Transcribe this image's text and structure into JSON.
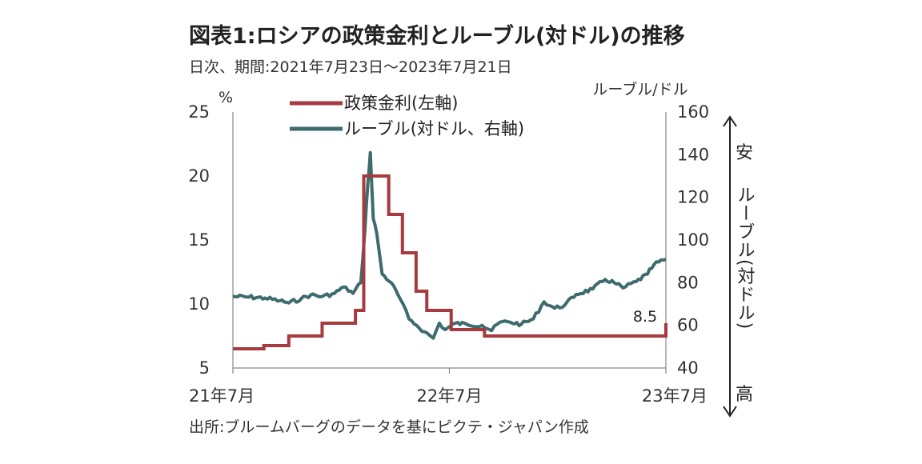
{
  "chart_data": {
    "type": "line",
    "title": "図表1:ロシアの政策金利とルーブル(対ドル)の推移",
    "subtitle": "日次、期間:2021年7月23日〜2023年7月21日",
    "source": "出所:ブルームバーグのデータを基にピクテ・ジャパン作成",
    "x_ticks": [
      "21年7月",
      "22年7月",
      "23年7月"
    ],
    "y_left": {
      "unit": "%",
      "min": 5,
      "max": 25,
      "ticks": [
        "5",
        "10",
        "15",
        "20",
        "25"
      ]
    },
    "y_right": {
      "unit": "ルーブル/ドル",
      "min": 40,
      "max": 160,
      "ticks": [
        "40",
        "60",
        "80",
        "100",
        "120",
        "140",
        "160"
      ]
    },
    "right_side_annotation": {
      "top": "安",
      "middle": "ルーブル(対ドル)",
      "bottom": "高"
    },
    "annotation": "8.5",
    "legend": {
      "position": "top-center"
    },
    "series": [
      {
        "name": "政策金利(左軸)",
        "axis": "left",
        "color": "#a63a3e",
        "step": true,
        "points": [
          [
            "2021-07-23",
            6.5
          ],
          [
            "2021-09-13",
            6.75
          ],
          [
            "2021-10-25",
            7.5
          ],
          [
            "2021-12-20",
            8.5
          ],
          [
            "2022-02-14",
            9.5
          ],
          [
            "2022-02-28",
            20.0
          ],
          [
            "2022-04-11",
            17.0
          ],
          [
            "2022-05-04",
            14.0
          ],
          [
            "2022-05-27",
            11.0
          ],
          [
            "2022-06-14",
            9.5
          ],
          [
            "2022-07-25",
            8.0
          ],
          [
            "2022-09-19",
            7.5
          ],
          [
            "2023-07-21",
            8.5
          ]
        ]
      },
      {
        "name": "ルーブル(対ドル、右軸)",
        "axis": "right",
        "color": "#3d6b6e",
        "step": false,
        "points": [
          [
            "2021-07-23",
            73.5
          ],
          [
            "2021-08-15",
            73.3
          ],
          [
            "2021-09-15",
            72.8
          ],
          [
            "2021-10-10",
            71.5
          ],
          [
            "2021-10-25",
            70.5
          ],
          [
            "2021-11-15",
            72.5
          ],
          [
            "2021-12-01",
            74.3
          ],
          [
            "2021-12-20",
            73.5
          ],
          [
            "2022-01-10",
            75.0
          ],
          [
            "2022-01-25",
            78.0
          ],
          [
            "2022-02-10",
            75.0
          ],
          [
            "2022-02-23",
            80.0
          ],
          [
            "2022-03-02",
            105.0
          ],
          [
            "2022-03-07",
            127.0
          ],
          [
            "2022-03-11",
            141.0
          ],
          [
            "2022-03-16",
            110.0
          ],
          [
            "2022-03-22",
            103.0
          ],
          [
            "2022-03-31",
            84.0
          ],
          [
            "2022-04-15",
            80.0
          ],
          [
            "2022-05-01",
            72.0
          ],
          [
            "2022-05-15",
            63.0
          ],
          [
            "2022-05-28",
            60.0
          ],
          [
            "2022-06-10",
            57.0
          ],
          [
            "2022-06-25",
            54.0
          ],
          [
            "2022-07-05",
            61.0
          ],
          [
            "2022-07-15",
            58.0
          ],
          [
            "2022-08-01",
            61.0
          ],
          [
            "2022-08-20",
            60.5
          ],
          [
            "2022-09-15",
            60.0
          ],
          [
            "2022-10-01",
            57.5
          ],
          [
            "2022-10-15",
            61.5
          ],
          [
            "2022-11-01",
            61.5
          ],
          [
            "2022-11-20",
            60.5
          ],
          [
            "2022-12-10",
            63.0
          ],
          [
            "2022-12-28",
            71.0
          ],
          [
            "2023-01-15",
            68.0
          ],
          [
            "2023-02-01",
            69.5
          ],
          [
            "2023-02-20",
            74.5
          ],
          [
            "2023-03-20",
            77.0
          ],
          [
            "2023-04-10",
            81.5
          ],
          [
            "2023-04-25",
            80.0
          ],
          [
            "2023-05-10",
            77.5
          ],
          [
            "2023-06-01",
            80.5
          ],
          [
            "2023-06-20",
            84.0
          ],
          [
            "2023-07-01",
            88.5
          ],
          [
            "2023-07-21",
            91.0
          ]
        ]
      }
    ]
  }
}
